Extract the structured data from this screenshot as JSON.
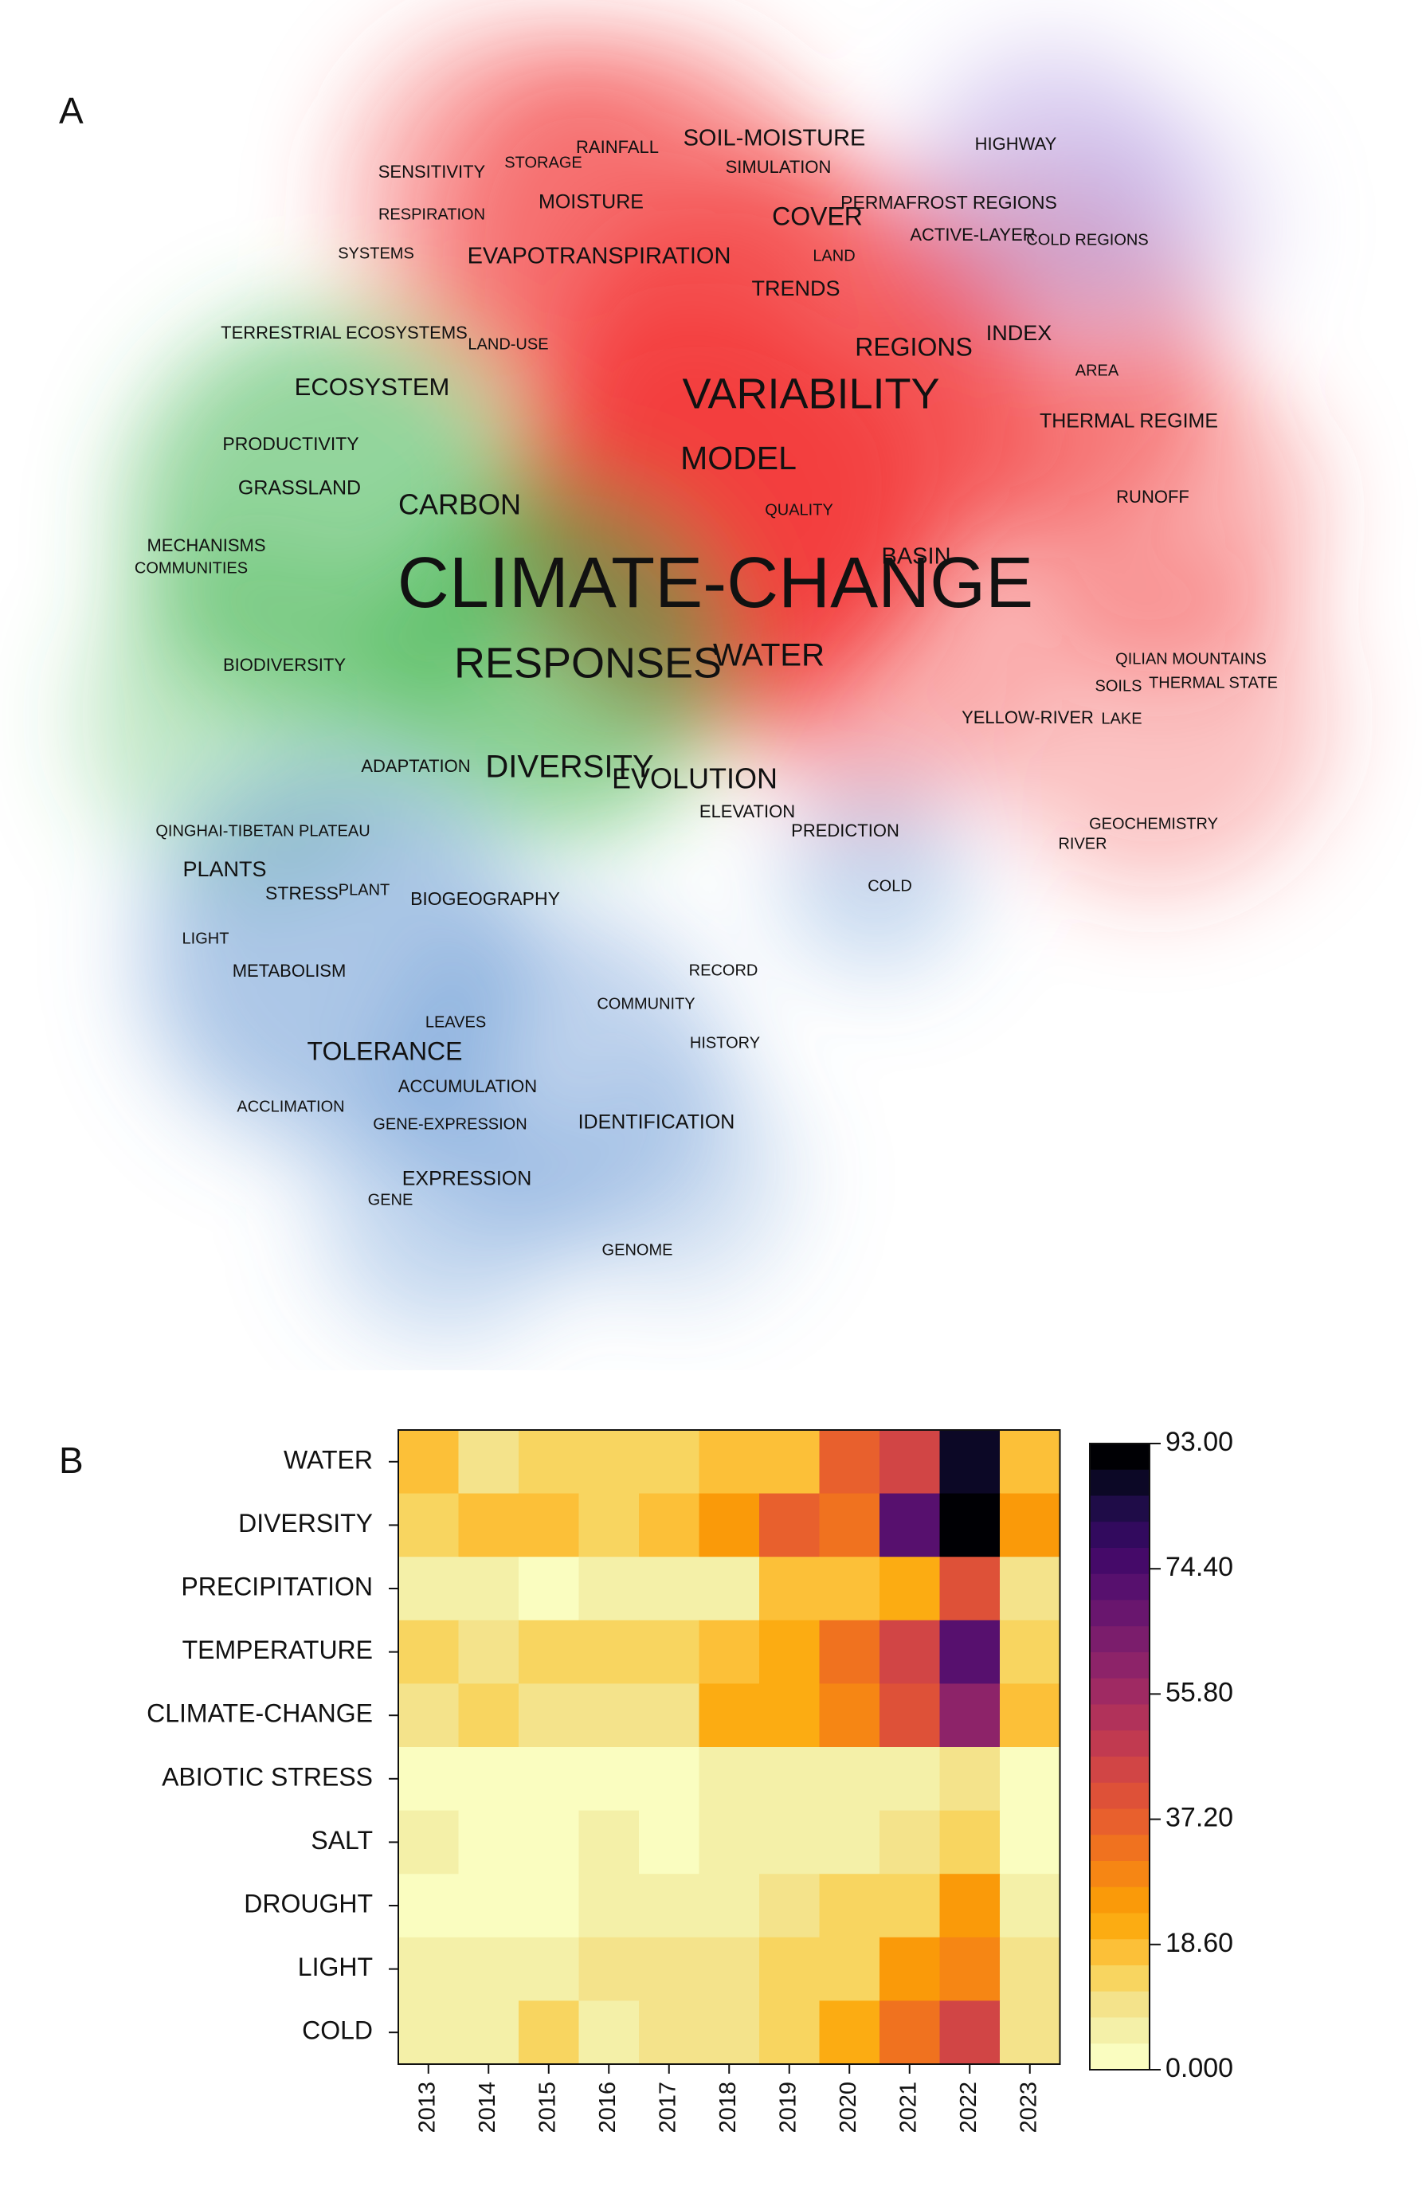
{
  "panels": {
    "a_label": "A",
    "b_label": "B"
  },
  "chart_data": [
    {
      "type": "density-map",
      "title": "",
      "clusters": [
        {
          "name": "red",
          "color": "#f23b3b"
        },
        {
          "name": "green",
          "color": "#3cb34a"
        },
        {
          "name": "blue",
          "color": "#5a8fd0"
        },
        {
          "name": "purple",
          "color": "#b9a6e6"
        }
      ],
      "terms": [
        {
          "text": "CLIMATE-CHANGE",
          "weight": 5
        },
        {
          "text": "RESPONSES",
          "weight": 3
        },
        {
          "text": "VARIABILITY",
          "weight": 3
        },
        {
          "text": "MODEL",
          "weight": 2.3
        },
        {
          "text": "WATER",
          "weight": 2.2
        },
        {
          "text": "DIVERSITY",
          "weight": 2.2
        },
        {
          "text": "EVOLUTION",
          "weight": 2
        },
        {
          "text": "CARBON",
          "weight": 2
        },
        {
          "text": "REGIONS",
          "weight": 1.8
        },
        {
          "text": "COVER",
          "weight": 1.8
        },
        {
          "text": "TOLERANCE",
          "weight": 1.8
        },
        {
          "text": "ECOSYSTEM",
          "weight": 1.7
        },
        {
          "text": "BASIN",
          "weight": 1.6
        },
        {
          "text": "SOIL-MOISTURE",
          "weight": 1.6
        },
        {
          "text": "EVAPOTRANSPIRATION",
          "weight": 1.6
        },
        {
          "text": "TRENDS",
          "weight": 1.5
        },
        {
          "text": "INDEX",
          "weight": 1.5
        },
        {
          "text": "PLANTS",
          "weight": 1.5
        },
        {
          "text": "MOISTURE",
          "weight": 1.4
        },
        {
          "text": "GRASSLAND",
          "weight": 1.4
        },
        {
          "text": "PRODUCTIVITY",
          "weight": 1.3
        },
        {
          "text": "THERMAL REGIME",
          "weight": 1.4
        },
        {
          "text": "EXPRESSION",
          "weight": 1.4
        },
        {
          "text": "IDENTIFICATION",
          "weight": 1.4
        },
        {
          "text": "PERMAFROST REGIONS",
          "weight": 1.3
        },
        {
          "text": "STRESS",
          "weight": 1.3
        },
        {
          "text": "BIOGEOGRAPHY",
          "weight": 1.3
        },
        {
          "text": "RAINFALL",
          "weight": 1.2
        },
        {
          "text": "SENSITIVITY",
          "weight": 1.2
        },
        {
          "text": "SIMULATION",
          "weight": 1.2
        },
        {
          "text": "HIGHWAY",
          "weight": 1.2
        },
        {
          "text": "ACTIVE-LAYER",
          "weight": 1.2
        },
        {
          "text": "TERRESTRIAL ECOSYSTEMS",
          "weight": 1.2
        },
        {
          "text": "ADAPTATION",
          "weight": 1.2
        },
        {
          "text": "ELEVATION",
          "weight": 1.2
        },
        {
          "text": "PREDICTION",
          "weight": 1.2
        },
        {
          "text": "RUNOFF",
          "weight": 1.2
        },
        {
          "text": "YELLOW-RIVER",
          "weight": 1.2
        },
        {
          "text": "METABOLISM",
          "weight": 1.2
        },
        {
          "text": "BIODIVERSITY",
          "weight": 1.2
        },
        {
          "text": "MECHANISMS",
          "weight": 1.2
        },
        {
          "text": "ACCUMULATION",
          "weight": 1.2
        },
        {
          "text": "GEOCHEMISTRY",
          "weight": 1.1
        },
        {
          "text": "STORAGE",
          "weight": 1.1
        },
        {
          "text": "RESPIRATION",
          "weight": 1.1
        },
        {
          "text": "SYSTEMS",
          "weight": 1.1
        },
        {
          "text": "LAND-USE",
          "weight": 1.1
        },
        {
          "text": "LAND",
          "weight": 1.1
        },
        {
          "text": "COLD REGIONS",
          "weight": 1.1
        },
        {
          "text": "AREA",
          "weight": 1.1
        },
        {
          "text": "QUALITY",
          "weight": 1.1
        },
        {
          "text": "QILIAN MOUNTAINS",
          "weight": 1.1
        },
        {
          "text": "SOILS",
          "weight": 1.1
        },
        {
          "text": "THERMAL STATE",
          "weight": 1.1
        },
        {
          "text": "LAKE",
          "weight": 1.1
        },
        {
          "text": "COMMUNITIES",
          "weight": 1.1
        },
        {
          "text": "QINGHAI-TIBETAN PLATEAU",
          "weight": 1.1
        },
        {
          "text": "PLANT",
          "weight": 1.1
        },
        {
          "text": "LIGHT",
          "weight": 1.1
        },
        {
          "text": "RECORD",
          "weight": 1.1
        },
        {
          "text": "COMMUNITY",
          "weight": 1.1
        },
        {
          "text": "HISTORY",
          "weight": 1.1
        },
        {
          "text": "LEAVES",
          "weight": 1.1
        },
        {
          "text": "ACCLIMATION",
          "weight": 1.1
        },
        {
          "text": "GENE-EXPRESSION",
          "weight": 1.1
        },
        {
          "text": "GENE",
          "weight": 1.1
        },
        {
          "text": "GENOME",
          "weight": 1.1
        },
        {
          "text": "COLD",
          "weight": 1.1
        },
        {
          "text": "RIVER",
          "weight": 1.1
        }
      ]
    },
    {
      "type": "heatmap",
      "title": "",
      "x_categories": [
        "2013",
        "2014",
        "2015",
        "2016",
        "2017",
        "2018",
        "2019",
        "2020",
        "2021",
        "2022",
        "2023"
      ],
      "y_categories": [
        "WATER",
        "DIVERSITY",
        "PRECIPITATION",
        "TEMPERATURE",
        "CLIMATE-CHANGE",
        "ABIOTIC STRESS",
        "SALT",
        "DROUGHT",
        "LIGHT",
        "COLD"
      ],
      "values": [
        [
          16,
          8,
          12,
          14,
          12,
          18,
          18,
          36,
          44,
          88,
          18
        ],
        [
          12,
          15,
          18,
          14,
          17,
          26,
          38,
          34,
          72,
          93,
          25
        ],
        [
          4,
          4,
          1,
          3,
          3,
          6,
          15,
          15,
          20,
          40,
          7
        ],
        [
          14,
          10,
          12,
          12,
          12,
          16,
          22,
          34,
          44,
          72,
          12
        ],
        [
          10,
          14,
          8,
          8,
          8,
          20,
          22,
          28,
          42,
          62,
          15
        ],
        [
          2,
          2,
          2,
          2,
          2,
          3,
          4,
          4,
          4,
          8,
          2
        ],
        [
          5,
          2,
          2,
          4,
          1,
          4,
          4,
          4,
          8,
          12,
          2
        ],
        [
          2,
          2,
          2,
          4,
          4,
          4,
          7,
          12,
          12,
          24,
          4
        ],
        [
          4,
          4,
          5,
          8,
          8,
          8,
          14,
          12,
          26,
          30,
          8
        ],
        [
          4,
          4,
          12,
          4,
          8,
          10,
          14,
          22,
          34,
          44,
          8
        ]
      ],
      "colorbar": {
        "min": 0,
        "max": 93,
        "ticks": [
          "93.00",
          "74.40",
          "55.80",
          "37.20",
          "18.60",
          "0.000"
        ],
        "palette": [
          "#000004",
          "#0c0826",
          "#1f0c48",
          "#320a5e",
          "#450a69",
          "#57106e",
          "#69166e",
          "#7b1d6c",
          "#8d2369",
          "#9f2a63",
          "#b1325a",
          "#c13a50",
          "#d14545",
          "#de5138",
          "#e8602d",
          "#f0721f",
          "#f68614",
          "#fa9a09",
          "#fcac12",
          "#fcc038",
          "#f8d560",
          "#f4e38b",
          "#f4f0a8",
          "#fafdc0"
        ]
      }
    }
  ]
}
